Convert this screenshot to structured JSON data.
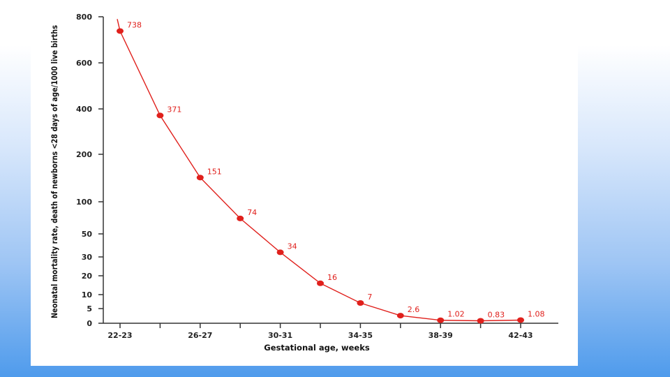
{
  "colors": {
    "series": "#e0201c",
    "axis": "#333333"
  },
  "chart_data": {
    "type": "line",
    "xlabel": "Gestational age, weeks",
    "ylabel": "Neonatal mortality rate, death of newborns <28 days of age/1000 live births",
    "x_tick_labels": [
      "22-23",
      "",
      "26-27",
      "",
      "30-31",
      "",
      "34-35",
      "",
      "38-39",
      "",
      "42-43"
    ],
    "y_ticks": [
      "0",
      "5",
      "10",
      "20",
      "30",
      "50",
      "100",
      "200",
      "400",
      "600",
      "800"
    ],
    "y_scale": "nonlinear (compressed at low values)",
    "ylim": [
      0,
      800
    ],
    "legend": "none",
    "grid": false,
    "series": [
      {
        "values": [
          738,
          371,
          151,
          74,
          34,
          16,
          7,
          2.6,
          1.02,
          0.83,
          1.08
        ],
        "labels": [
          "738",
          "371",
          "151",
          "74",
          "34",
          "16",
          "7",
          "2.6",
          "1.02",
          "0.83",
          "1.08"
        ]
      }
    ]
  }
}
